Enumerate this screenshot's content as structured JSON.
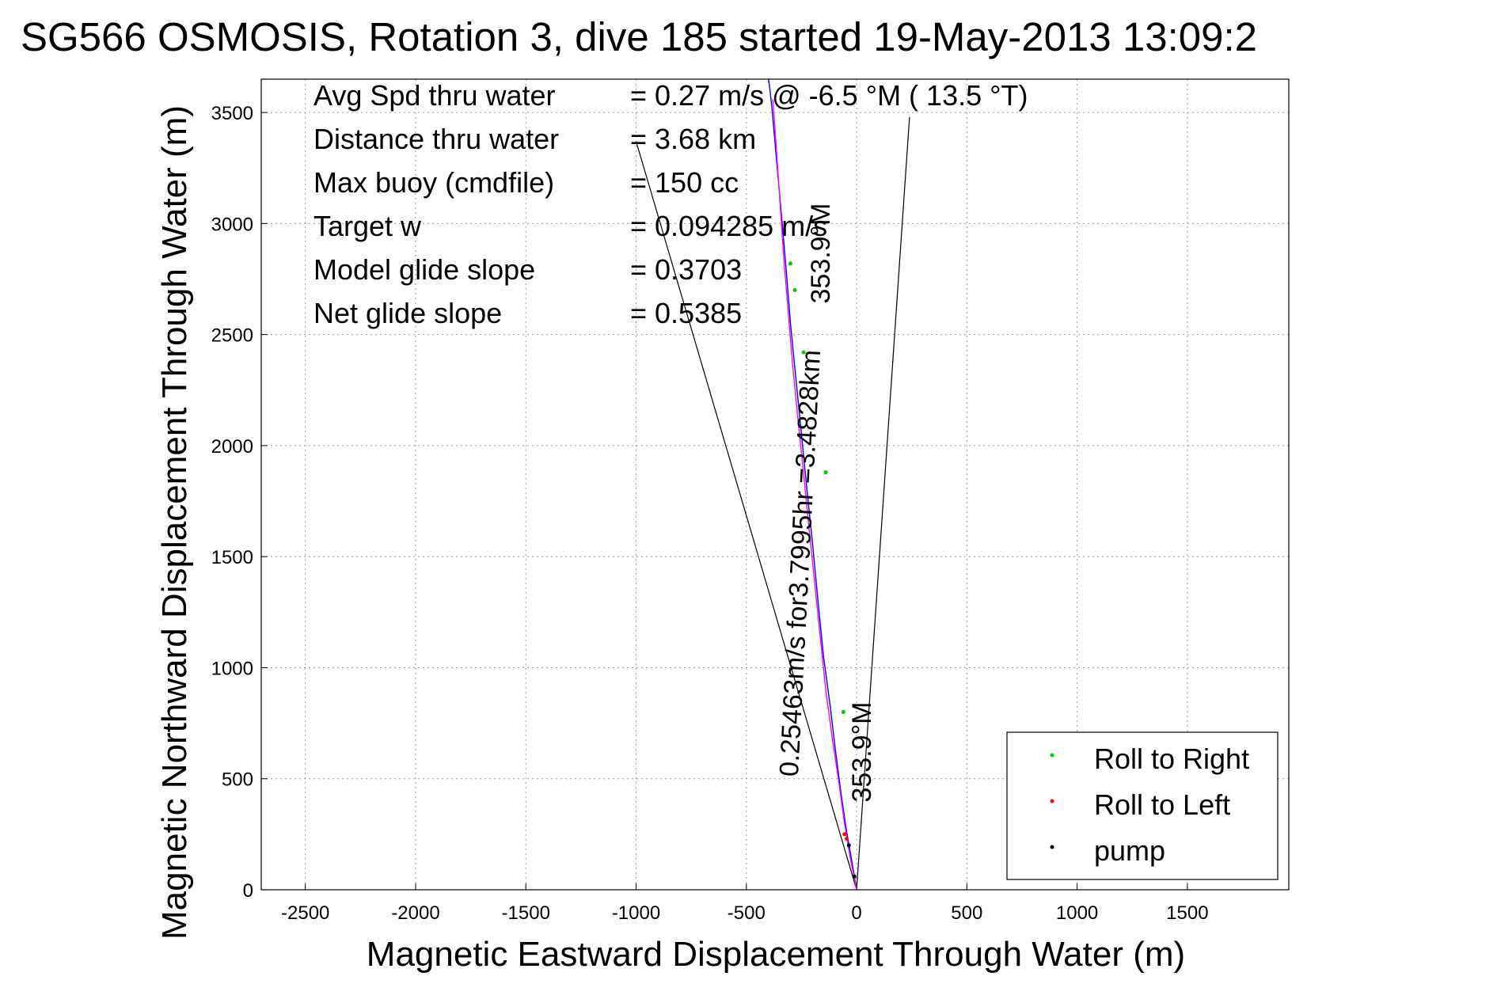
{
  "chart_data": {
    "type": "line",
    "title": "SG566 OSMOSIS, Rotation 3, dive 185 started 19-May-2013 13:09:2",
    "xlabel": "Magnetic Eastward Displacement Through Water (m)",
    "ylabel": "Magnetic Northward Displacement Through Water (m)",
    "xlim": [
      -2700,
      1960
    ],
    "ylim": [
      0,
      3650
    ],
    "xticks": [
      -2500,
      -2000,
      -1500,
      -1000,
      -500,
      0,
      500,
      1000,
      1500
    ],
    "yticks": [
      0,
      500,
      1000,
      1500,
      2000,
      2500,
      3000,
      3500
    ],
    "grid": true,
    "legend_position": "bottom-right",
    "legend": [
      {
        "label": "Roll to Right",
        "color": "#00cc00"
      },
      {
        "label": "Roll to Left",
        "color": "#ff0000"
      },
      {
        "label": "pump",
        "color": "#000000"
      }
    ],
    "stats": [
      {
        "label": "Avg Spd thru water",
        "value": "=  0.27 m/s @  -6.5 °M ( 13.5 °T)"
      },
      {
        "label": "Distance thru water",
        "value": "=  3.68 km"
      },
      {
        "label": "Max buoy (cmdfile)",
        "value": "= 150 cc"
      },
      {
        "label": "Target w",
        "value": "= 0.094285 m/s"
      },
      {
        "label": "Model glide slope",
        "value": "= 0.3703"
      },
      {
        "label": "Net glide slope",
        "value": "= 0.5385"
      }
    ],
    "annotations": {
      "upper_heading": "353.9°M",
      "track_summary": "0.25463m/s for3.7995hr =3.4828km",
      "lower_heading": "353.9°M"
    },
    "series": [
      {
        "color": "#0000ff",
        "x": [
          0,
          -20,
          -45,
          -70,
          -95,
          -120,
          -150,
          -175,
          -200,
          -225,
          -250,
          -275,
          -300,
          -320,
          -340,
          -360,
          -375,
          -385,
          -395,
          -400
        ],
        "y": [
          0,
          120,
          260,
          430,
          620,
          830,
          1050,
          1300,
          1560,
          1800,
          2050,
          2300,
          2550,
          2800,
          3030,
          3250,
          3420,
          3530,
          3620,
          3650
        ]
      },
      {
        "color": "#ff00ff",
        "x": [
          0,
          -30,
          -55,
          -80,
          -110,
          -140,
          -165,
          -190,
          -215,
          -240,
          -265,
          -290,
          -310,
          -330,
          -345,
          -360,
          -372,
          -380
        ],
        "y": [
          0,
          150,
          300,
          480,
          680,
          900,
          1140,
          1380,
          1620,
          1870,
          2110,
          2360,
          2600,
          2840,
          3060,
          3280,
          3450,
          3560
        ]
      }
    ],
    "wedge_lines": [
      {
        "color": "#000000",
        "x": [
          0,
          -1000
        ],
        "y": [
          0,
          3370
        ]
      },
      {
        "color": "#000000",
        "x": [
          0,
          240
        ],
        "y": [
          0,
          3480
        ]
      }
    ],
    "green_points": {
      "x": [
        -300,
        -280,
        -240,
        -140,
        -60
      ],
      "y": [
        2820,
        2700,
        2420,
        1880,
        800
      ]
    },
    "red_points": {
      "x": [
        -55,
        -45
      ],
      "y": [
        250,
        230
      ]
    },
    "pump_points": {
      "x": [
        -35,
        -10
      ],
      "y": [
        200,
        60
      ]
    }
  }
}
